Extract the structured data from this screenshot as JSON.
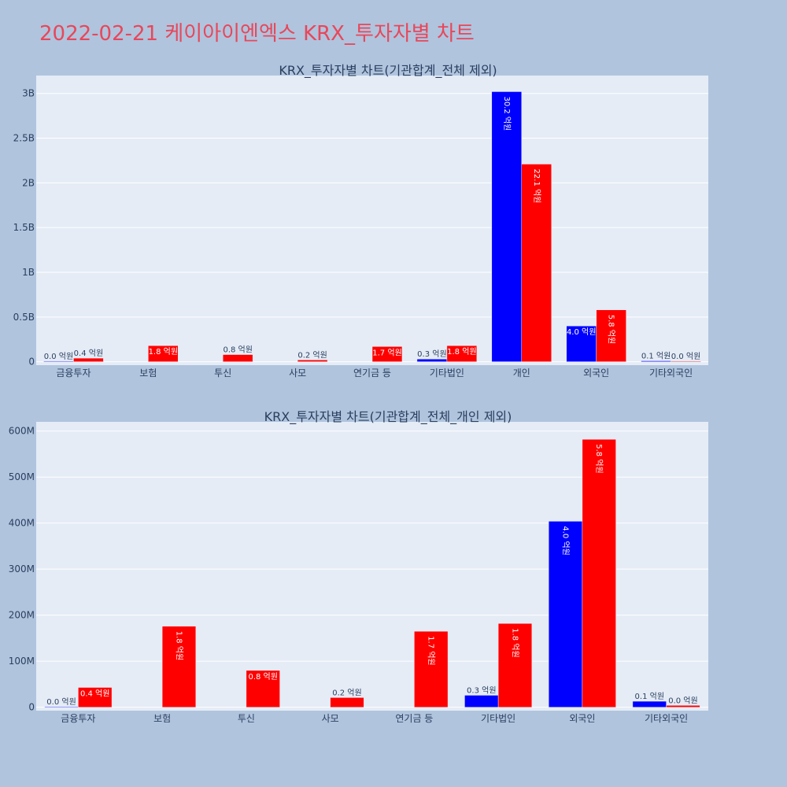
{
  "page": {
    "title": "2022-02-21 케이아이엔엑스 KRX_투자자별 차트"
  },
  "colors": {
    "series_a": "#0000ff",
    "series_b": "#ff0000",
    "background": "#b0c4de",
    "plot": "#e5ecf6",
    "title": "#e8475a"
  },
  "chart_data": [
    {
      "type": "bar",
      "title": "KRX_투자자별 차트(기관합계_전체 제외)",
      "categories": [
        "금융투자",
        "보험",
        "투신",
        "사모",
        "연기금 등",
        "기타법인",
        "개인",
        "외국인",
        "기타외국인"
      ],
      "series": [
        {
          "values": [
            0,
            null,
            null,
            null,
            null,
            30000000,
            3020000000,
            400000000,
            10000000
          ],
          "labels": [
            "0.0 억원",
            "",
            "",
            "",
            "",
            "0.3 억원",
            "30.2 억원",
            "4.0 억원",
            "0.1 억원"
          ]
        },
        {
          "values": [
            40000000,
            180000000,
            80000000,
            20000000,
            170000000,
            180000000,
            2210000000,
            580000000,
            3000000
          ],
          "labels": [
            "0.4 억원",
            "1.8 억원",
            "0.8 억원",
            "0.2 억원",
            "1.7 억원",
            "1.8 억원",
            "22.1 억원",
            "5.8 억원",
            "0.0 억원"
          ]
        }
      ],
      "ylim": [
        0,
        3200000000
      ],
      "yticks": [
        0,
        500000000,
        1000000000,
        1500000000,
        2000000000,
        2500000000,
        3000000000
      ],
      "ytick_labels": [
        "0",
        "0.5B",
        "1B",
        "1.5B",
        "2B",
        "2.5B",
        "3B"
      ],
      "grid": true
    },
    {
      "type": "bar",
      "title": "KRX_투자자별 차트(기관합계_전체_개인 제외)",
      "categories": [
        "금융투자",
        "보험",
        "투신",
        "사모",
        "연기금 등",
        "기타법인",
        "외국인",
        "기타외국인"
      ],
      "series": [
        {
          "values": [
            0,
            null,
            null,
            null,
            null,
            26000000,
            404000000,
            13000000
          ],
          "labels": [
            "0.0 억원",
            "",
            "",
            "",
            "",
            "0.3 억원",
            "4.0 억원",
            "0.1 억원"
          ]
        },
        {
          "values": [
            43000000,
            176000000,
            80000000,
            21000000,
            165000000,
            182000000,
            582000000,
            4000000
          ],
          "labels": [
            "0.4 억원",
            "1.8 억원",
            "0.8 억원",
            "0.2 억원",
            "1.7 억원",
            "1.8 억원",
            "5.8 억원",
            "0.0 억원"
          ]
        }
      ],
      "ylim": [
        0,
        620000000
      ],
      "yticks": [
        0,
        100000000,
        200000000,
        300000000,
        400000000,
        500000000,
        600000000
      ],
      "ytick_labels": [
        "0",
        "100M",
        "200M",
        "300M",
        "400M",
        "500M",
        "600M"
      ],
      "grid": true
    }
  ]
}
